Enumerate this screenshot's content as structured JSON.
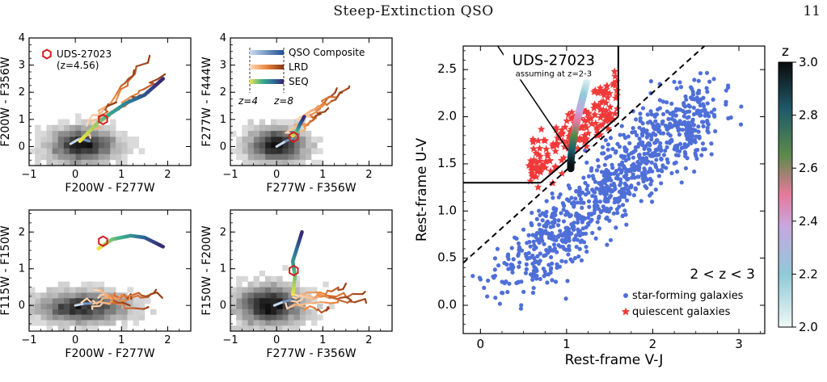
{
  "header": {
    "title": "Steep-Extinction QSO",
    "page": "11"
  },
  "colors": {
    "qso": "#2c6db0",
    "lrd": "#d9662b",
    "seq": "#4a2a84",
    "sf": "#4f6fd8",
    "q": "#f03a3a",
    "target": "#d41e1e"
  },
  "chart_data": [
    {
      "type": "scatter",
      "id": "p1",
      "xlabel": "F200W - F277W",
      "ylabel": "F200W - F356W",
      "xlim": [
        -1,
        2.5
      ],
      "ylim": [
        -0.7,
        4
      ],
      "xticks": [
        -1,
        0,
        1,
        2
      ],
      "yticks": [
        0,
        1,
        2,
        3,
        4
      ],
      "target": {
        "label": "UDS-27023",
        "sub": "(z=4.56)",
        "x": 0.6,
        "y": 1.0
      }
    },
    {
      "type": "scatter",
      "id": "p2",
      "xlabel": "F277W - F356W",
      "ylabel": "F277W - F444W",
      "xlim": [
        -1,
        2.5
      ],
      "ylim": [
        -0.7,
        4
      ],
      "xticks": [
        -1,
        0,
        1,
        2
      ],
      "yticks": [
        0,
        1,
        2,
        3,
        4
      ],
      "target": {
        "x": 0.37,
        "y": 0.35
      },
      "legend": [
        {
          "label": "QSO Composite"
        },
        {
          "label": "LRD"
        },
        {
          "label": "SEQ"
        }
      ],
      "zlabels": [
        "z=4",
        "z=8"
      ]
    },
    {
      "type": "scatter",
      "id": "p3",
      "xlabel": "F200W - F277W",
      "ylabel": "F115W - F150W",
      "xlim": [
        -1,
        2.5
      ],
      "ylim": [
        -0.7,
        2.6
      ],
      "xticks": [
        -1,
        0,
        1,
        2
      ],
      "yticks": [
        0,
        1,
        2
      ],
      "target": {
        "x": 0.6,
        "y": 1.75
      }
    },
    {
      "type": "scatter",
      "id": "p4",
      "xlabel": "F277W - F356W",
      "ylabel": "F150W - F200W",
      "xlim": [
        -1,
        2.5
      ],
      "ylim": [
        -0.7,
        2.6
      ],
      "xticks": [
        -1,
        0,
        1,
        2
      ],
      "yticks": [
        0,
        1,
        2
      ],
      "target": {
        "x": 0.37,
        "y": 0.95
      }
    },
    {
      "type": "scatter",
      "id": "uvj",
      "xlabel": "Rest-frame V-J",
      "ylabel": "Rest-frame U-V",
      "xlim": [
        -0.2,
        3.3
      ],
      "ylim": [
        -0.3,
        2.75
      ],
      "xticks": [
        0,
        1,
        2,
        3
      ],
      "yticks": [
        0.0,
        0.5,
        1.0,
        1.5,
        2.0,
        2.5
      ],
      "annotation": {
        "title": "UDS-27023",
        "sub": "assuming at z=2-3"
      },
      "legend": {
        "title": "2 < z < 3",
        "sf": "star-forming galaxies",
        "q": "quiescent galaxies"
      },
      "colorbar": {
        "label": "z",
        "range": [
          2.0,
          3.0
        ],
        "ticks": [
          "2.0",
          "2.2",
          "2.4",
          "2.6",
          "2.8",
          "3.0"
        ]
      }
    }
  ]
}
